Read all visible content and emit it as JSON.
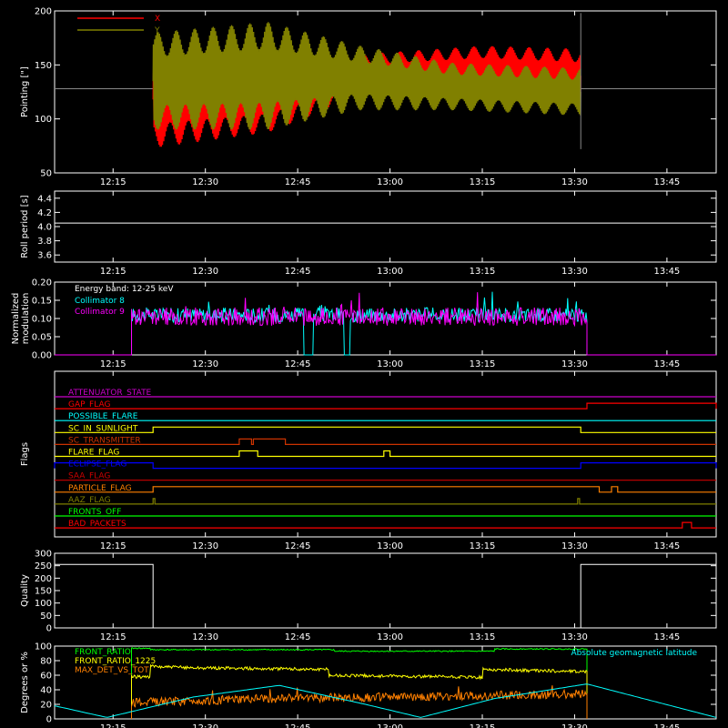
{
  "time_ticks": [
    "12:15",
    "12:30",
    "12:45",
    "13:00",
    "13:15",
    "13:30",
    "13:45"
  ],
  "time_tick_minutes": [
    735,
    750,
    765,
    780,
    795,
    810,
    825
  ],
  "time_range_minutes": [
    725.5,
    833
  ],
  "colors": {
    "red": "#ff0000",
    "olive": "#808000",
    "cyan": "#00ffff",
    "magenta": "#ff00ff",
    "yellow": "#ffff00",
    "green": "#00ff00",
    "orange": "#ff8000",
    "blue": "#0000ff",
    "white": "#ffffff",
    "darkred": "#cc0000",
    "purple": "#cc00cc",
    "brown": "#cc3300"
  },
  "chart_data": [
    {
      "type": "line",
      "id": "pointing",
      "ylabel": "Pointing [\"]",
      "ylim": [
        50,
        200
      ],
      "yticks": [
        50,
        100,
        150,
        200
      ],
      "grid": false,
      "legend_position": "top-left",
      "baseline": 128,
      "active_range": [
        741.5,
        811
      ],
      "series": [
        {
          "name": "X",
          "color": "red",
          "mean": [
            [
              741.5,
              118
            ],
            [
              760,
              122
            ],
            [
              775,
              140
            ],
            [
              795,
              145
            ],
            [
              811,
              140
            ]
          ],
          "amplitude": [
            [
              741.5,
              45
            ],
            [
              760,
              35
            ],
            [
              775,
              20
            ],
            [
              790,
              22
            ],
            [
              811,
              25
            ]
          ]
        },
        {
          "name": "Y",
          "color": "olive",
          "mean": [
            [
              741.5,
              135
            ],
            [
              760,
              140
            ],
            [
              775,
              138
            ],
            [
              790,
              130
            ],
            [
              811,
              125
            ]
          ],
          "amplitude": [
            [
              741.5,
              45
            ],
            [
              760,
              50
            ],
            [
              775,
              30
            ],
            [
              790,
              22
            ],
            [
              811,
              22
            ]
          ]
        }
      ]
    },
    {
      "type": "line",
      "id": "roll-period",
      "ylabel": "Roll period [s]",
      "ylim": [
        3.5,
        4.5
      ],
      "yticks": [
        3.6,
        3.8,
        4.0,
        4.2,
        4.4
      ],
      "series": [
        {
          "name": "",
          "color": "white",
          "points": [
            [
              725.5,
              4.05
            ],
            [
              833,
              4.05
            ]
          ]
        }
      ]
    },
    {
      "type": "line",
      "id": "modulation",
      "ylabel": "Normalized modulation",
      "ylim": [
        0,
        0.2
      ],
      "yticks": [
        0.0,
        0.05,
        0.1,
        0.15,
        0.2
      ],
      "legend_position": "top-left",
      "legend_title": "Energy band: 12-25 keV",
      "active_range": [
        738,
        812
      ],
      "series": [
        {
          "name": "Collimator 8",
          "color": "cyan",
          "level": 0.11,
          "noise": 0.02,
          "dropouts": [
            [
              766,
              767.5
            ],
            [
              772.5,
              773.5
            ]
          ]
        },
        {
          "name": "Collimator 9",
          "color": "magenta",
          "level": 0.105,
          "noise": 0.025,
          "dropouts": []
        }
      ]
    },
    {
      "type": "line",
      "id": "flags",
      "ylabel": "Flags",
      "flags": [
        {
          "name": "ATTENUATOR_STATE",
          "color": "purple",
          "segments": []
        },
        {
          "name": "GAP_FLAG",
          "color": "red",
          "segments": [
            [
              812,
              833
            ]
          ]
        },
        {
          "name": "POSSIBLE_FLARE",
          "color": "cyan",
          "segments": []
        },
        {
          "name": "SC_IN_SUNLIGHT",
          "color": "yellow",
          "segments": [
            [
              741.5,
              811
            ]
          ]
        },
        {
          "name": "SC_TRANSMITTER",
          "color": "brown",
          "segments": [
            [
              755.5,
              757.5
            ],
            [
              757.8,
              763
            ]
          ]
        },
        {
          "name": "FLARE_FLAG",
          "color": "yellow",
          "segments": [
            [
              755.5,
              758.5
            ],
            [
              779,
              780
            ]
          ]
        },
        {
          "name": "ECLIPSE_FLAG",
          "color": "blue",
          "segments": [
            [
              725.5,
              741.5
            ],
            [
              811,
              833
            ]
          ]
        },
        {
          "name": "SAA_FLAG",
          "color": "darkred",
          "segments": []
        },
        {
          "name": "PARTICLE_FLAG",
          "color": "orange",
          "segments": [
            [
              741.5,
              814
            ],
            [
              816,
              817
            ]
          ]
        },
        {
          "name": "AAZ_FLAG",
          "color": "olive",
          "segments": [
            [
              741.5,
              741.8
            ],
            [
              810.5,
              810.8
            ]
          ]
        },
        {
          "name": "FRONTS_OFF",
          "color": "green",
          "segments": []
        },
        {
          "name": "BAD_PACKETS",
          "color": "red",
          "segments": [
            [
              827.5,
              829
            ]
          ]
        }
      ]
    },
    {
      "type": "line",
      "id": "quality",
      "ylabel": "Quality",
      "ylim": [
        0,
        300
      ],
      "yticks": [
        0,
        50,
        100,
        150,
        200,
        250,
        300
      ],
      "series": [
        {
          "name": "",
          "color": "white",
          "points": [
            [
              725.5,
              255
            ],
            [
              741.5,
              255
            ],
            [
              741.5,
              0
            ],
            [
              811,
              0
            ],
            [
              811,
              255
            ],
            [
              833,
              255
            ]
          ]
        }
      ]
    },
    {
      "type": "line",
      "id": "front-ratio",
      "ylabel": "Degrees or %",
      "ylim": [
        0,
        100
      ],
      "yticks": [
        0,
        20,
        40,
        60,
        80,
        100
      ],
      "legend_position": "top-left",
      "series": [
        {
          "name": "FRONT_RATIO",
          "color": "green",
          "points": [
            [
              738,
              97
            ],
            [
              741,
              97
            ],
            [
              741,
              95
            ],
            [
              771,
              95
            ],
            [
              771,
              93
            ],
            [
              797,
              93
            ],
            [
              797,
              96
            ],
            [
              812,
              96
            ]
          ]
        },
        {
          "name": "FRONT_RATIO_1225",
          "color": "yellow",
          "points": [
            [
              738,
              58
            ],
            [
              741,
              58
            ],
            [
              741,
              72
            ],
            [
              750,
              70
            ],
            [
              770,
              68
            ],
            [
              770,
              60
            ],
            [
              795,
              57
            ],
            [
              795,
              68
            ],
            [
              811,
              65
            ],
            [
              812,
              65
            ]
          ]
        },
        {
          "name": "MAX_DET_VS_TOT",
          "color": "orange",
          "points": [
            [
              738,
              22
            ],
            [
              760,
              28
            ],
            [
              780,
              30
            ],
            [
              800,
              32
            ],
            [
              812,
              35
            ]
          ]
        },
        {
          "name": "Absolute geomagnetic latitude",
          "color": "cyan",
          "points": [
            [
              725.5,
              18
            ],
            [
              734,
              2
            ],
            [
              748,
              30
            ],
            [
              762,
              46
            ],
            [
              776,
              20
            ],
            [
              785,
              2
            ],
            [
              797,
              28
            ],
            [
              812,
              48
            ],
            [
              833,
              2
            ]
          ]
        }
      ]
    }
  ]
}
